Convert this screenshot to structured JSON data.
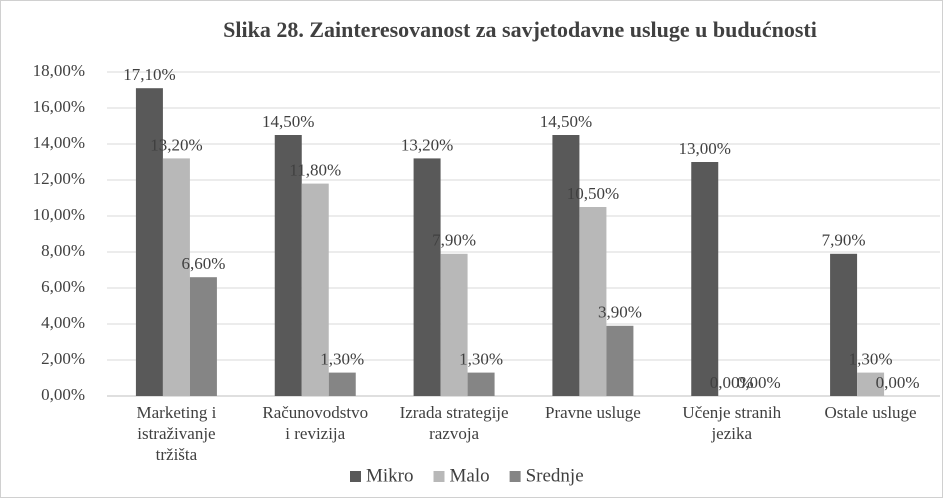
{
  "chart_data": {
    "type": "bar",
    "title": "Slika 28. Zainteresovanost za savjetodavne usluge u budućnosti",
    "categories": [
      [
        "Marketing i",
        "istraživanje",
        "tržišta"
      ],
      [
        "Računovodstvo",
        "i revizija"
      ],
      [
        "Izrada strategije",
        "razvoja"
      ],
      [
        "Pravne usluge"
      ],
      [
        "Učenje stranih",
        "jezika"
      ],
      [
        "Ostale usluge"
      ]
    ],
    "series": [
      {
        "name": "Mikro",
        "color": "#595959",
        "values": [
          17.1,
          14.5,
          13.2,
          14.5,
          13.0,
          7.9
        ],
        "value_labels": [
          "17,10%",
          "14,50%",
          "13,20%",
          "14,50%",
          "13,00%",
          "7,90%"
        ]
      },
      {
        "name": "Malo",
        "color": "#b8b8b8",
        "values": [
          13.2,
          11.8,
          7.9,
          10.5,
          0,
          1.3
        ],
        "value_labels": [
          "13,20%",
          "11,80%",
          "7,90%",
          "10,50%",
          "0,00%",
          "1,30%"
        ]
      },
      {
        "name": "Srednje",
        "color": "#858585",
        "values": [
          6.6,
          1.3,
          1.3,
          3.9,
          0,
          0
        ],
        "value_labels": [
          "6,60%",
          "1,30%",
          "1,30%",
          "3,90%",
          "0,00%",
          "0,00%"
        ]
      }
    ],
    "ylim": [
      0,
      18
    ],
    "yticks": [
      {
        "value": 0,
        "label": "0,00%"
      },
      {
        "value": 2,
        "label": "2,00%"
      },
      {
        "value": 4,
        "label": "4,00%"
      },
      {
        "value": 6,
        "label": "6,00%"
      },
      {
        "value": 8,
        "label": "8,00%"
      },
      {
        "value": 10,
        "label": "10,00%"
      },
      {
        "value": 12,
        "label": "12,00%"
      },
      {
        "value": 14,
        "label": "14,00%"
      },
      {
        "value": 16,
        "label": "16,00%"
      },
      {
        "value": 18,
        "label": "18,00%"
      }
    ],
    "grid": true,
    "legend": "bottom"
  }
}
